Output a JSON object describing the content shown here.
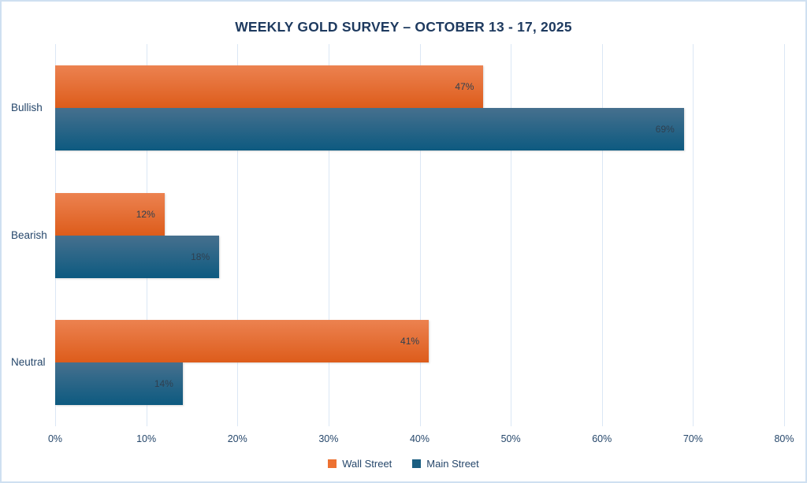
{
  "chart_data": {
    "type": "bar",
    "orientation": "horizontal",
    "title": "WEEKLY GOLD SURVEY – OCTOBER 13 - 17, 2025",
    "categories": [
      "Bullish",
      "Bearish",
      "Neutral"
    ],
    "series": [
      {
        "name": "Wall Street",
        "values": [
          47,
          12,
          41
        ],
        "data_labels": [
          "47%",
          "12%",
          "41%"
        ],
        "color_top": "#EC8250",
        "color_bottom": "#DD5C1B",
        "legend_color": "#ED7131"
      },
      {
        "name": "Main Street",
        "values": [
          69,
          18,
          14
        ],
        "data_labels": [
          "69%",
          "18%",
          "14%"
        ],
        "color_top": "#46708E",
        "color_bottom": "#0D5A80",
        "legend_color": "#1B5E81"
      }
    ],
    "value_suffix": "%",
    "xlim": [
      0,
      80
    ],
    "x_ticks": [
      "0%",
      "10%",
      "20%",
      "30%",
      "40%",
      "50%",
      "60%",
      "70%",
      "80%"
    ],
    "grid": true,
    "legend_position": "bottom",
    "colors": {
      "title_text": "#1e3a5f",
      "axis_text": "#26476b",
      "data_label_text": "#2f4050",
      "gridline": "#dbe7f5",
      "frame_border": "#cfe0f1",
      "background": "#ffffff"
    }
  }
}
